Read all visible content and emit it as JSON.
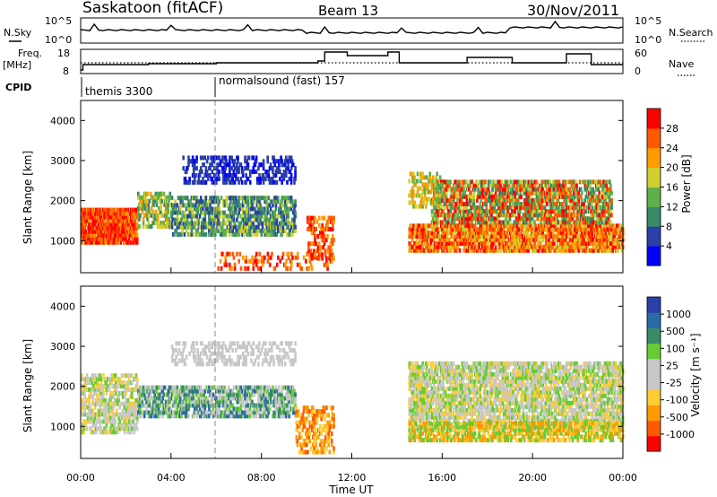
{
  "header": {
    "station": "Saskatoon (fitACF)",
    "beam": "Beam 13",
    "date": "30/Nov/2011"
  },
  "noise_panel": {
    "left_label": "N.Sky",
    "right_label": "N.Search",
    "left_ticks": [
      "10^5",
      "10^0"
    ],
    "right_ticks": [
      "10^5",
      "10^0"
    ]
  },
  "freq_panel": {
    "left_label": "Freq.",
    "left_unit": "[MHz]",
    "right_label": "Nave",
    "left_ticks": [
      "18",
      "8"
    ],
    "right_ticks": [
      "60",
      "0"
    ]
  },
  "cpid": {
    "label": "CPID",
    "entries": [
      {
        "name": "themis 3300",
        "start_hour": 0.0
      },
      {
        "name": "normalsound (fast) 157",
        "start_hour": 6.0
      }
    ]
  },
  "colors": {
    "power_scale": [
      "#0000ff",
      "#2a3fa8",
      "#3a8a6a",
      "#5fb04a",
      "#cfcf30",
      "#ff9a00",
      "#ff5a00",
      "#ff0000"
    ],
    "velocity_scale": [
      "#ff0000",
      "#ff5a00",
      "#ff9a00",
      "#ffcc33",
      "#c8c8c8",
      "#c8c8c8",
      "#66cc33",
      "#3a8a6a",
      "#2a6aa8",
      "#2a3fa8"
    ],
    "line": "#000000"
  },
  "chart_data": [
    {
      "type": "heatmap",
      "name": "power",
      "ylabel": "Slant Range [km]",
      "yticks": [
        1000,
        2000,
        3000,
        4000
      ],
      "ylim": [
        200,
        4500
      ],
      "xlim": [
        0,
        24
      ],
      "colorbar_label": "Power [dB]",
      "colorbar_ticks": [
        "28",
        "24",
        "20",
        "16",
        "12",
        "8",
        "4"
      ]
    },
    {
      "type": "heatmap",
      "name": "velocity",
      "ylabel": "Slant Range [km]",
      "yticks": [
        1000,
        2000,
        3000,
        4000
      ],
      "ylim": [
        200,
        4500
      ],
      "xlim": [
        0,
        24
      ],
      "colorbar_label": "Velocity [m s⁻¹]",
      "colorbar_ticks": [
        "1000",
        "500",
        "100",
        "25",
        "-25",
        "-100",
        "-500",
        "-1000"
      ]
    }
  ],
  "x_axis": {
    "ticks": [
      "00:00",
      "04:00",
      "08:00",
      "12:00",
      "16:00",
      "20:00",
      "00:00"
    ],
    "label": "Time UT"
  }
}
